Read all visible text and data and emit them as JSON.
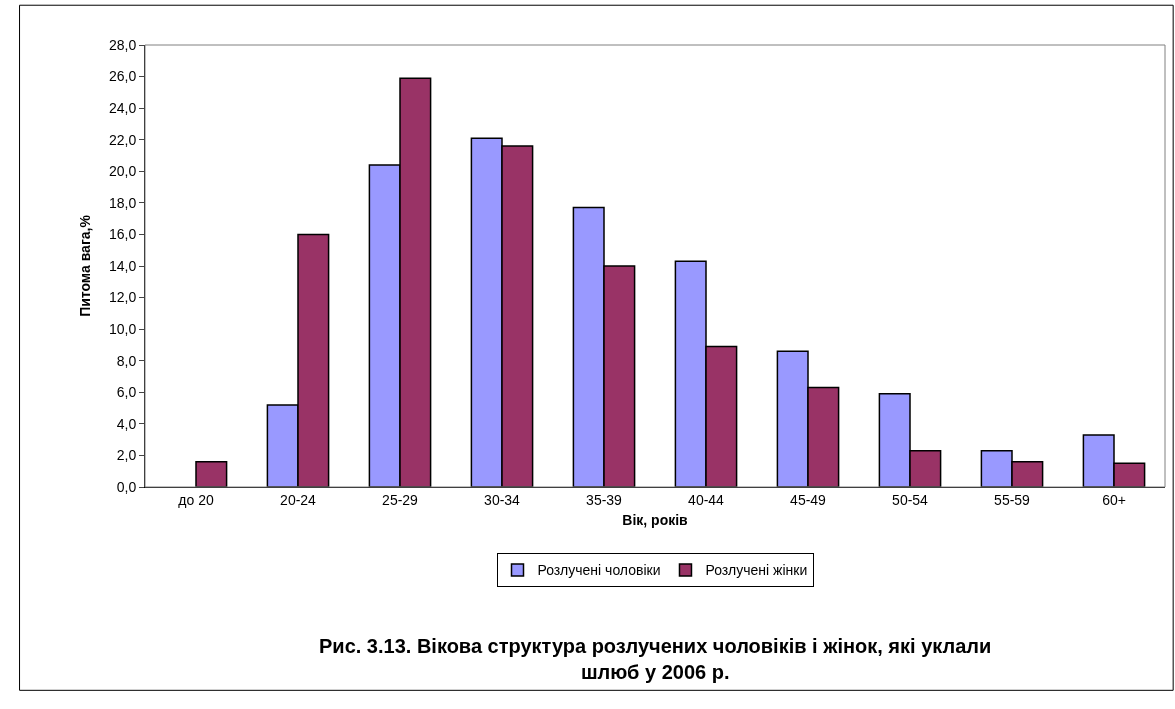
{
  "chart_data": {
    "type": "bar",
    "title": "Рис. 3.13. Вікова структура розлучених чоловіків і жінок, які уклали шлюб у 2006 р.",
    "xlabel": "Вік, років",
    "ylabel": "Питома вага,%",
    "categories": [
      "до 20",
      "20-24",
      "25-29",
      "30-34",
      "35-39",
      "40-44",
      "45-49",
      "50-54",
      "55-59",
      "60+"
    ],
    "series": [
      {
        "name": "Розлучені чоловіки",
        "color": "#9999ff",
        "values": [
          null,
          5.2,
          20.4,
          22.1,
          17.7,
          14.3,
          8.6,
          5.9,
          2.3,
          3.3
        ]
      },
      {
        "name": "Розлучені жінки",
        "color": "#993366",
        "values": [
          1.6,
          16.0,
          25.9,
          21.6,
          14.0,
          8.9,
          6.3,
          2.3,
          1.6,
          1.5
        ]
      }
    ],
    "ylim": [
      0,
      28
    ],
    "yticks": [
      {
        "value": 0,
        "label": "0,0"
      },
      {
        "value": 2,
        "label": "2,0"
      },
      {
        "value": 4,
        "label": "4,0"
      },
      {
        "value": 6,
        "label": "6,0"
      },
      {
        "value": 8,
        "label": "8,0"
      },
      {
        "value": 10,
        "label": "10,0"
      },
      {
        "value": 12,
        "label": "12,0"
      },
      {
        "value": 14,
        "label": "14,0"
      },
      {
        "value": 16,
        "label": "16,0"
      },
      {
        "value": 18,
        "label": "18,0"
      },
      {
        "value": 20,
        "label": "20,0"
      },
      {
        "value": 22,
        "label": "22,0"
      },
      {
        "value": 24,
        "label": "24,0"
      },
      {
        "value": 26,
        "label": "26,0"
      },
      {
        "value": 28,
        "label": "28,0"
      }
    ],
    "legend": "bottom"
  }
}
